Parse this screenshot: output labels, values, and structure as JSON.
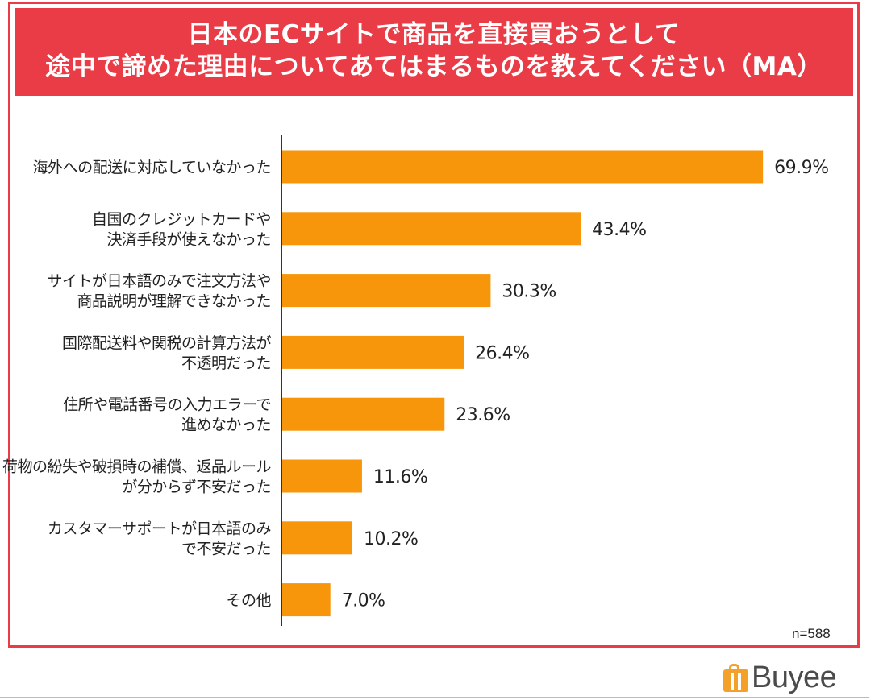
{
  "title": {
    "line1": "日本のECサイトで商品を直接買おうとして",
    "line2": "途中で諦めた理由についてあてはまるものを教えてください（MA）"
  },
  "note": "n=588",
  "brand": "Buyee",
  "colors": {
    "frame": "#ea3c46",
    "bar": "#f7960b",
    "axis": "#333333"
  },
  "chart_data": {
    "type": "bar",
    "orientation": "horizontal",
    "categories": [
      [
        "海外への配送に対応していなかった"
      ],
      [
        "自国のクレジットカードや",
        "決済手段が使えなかった"
      ],
      [
        "サイトが日本語のみで注文方法や",
        "商品説明が理解できなかった"
      ],
      [
        "国際配送料や関税の計算方法が",
        "不透明だった"
      ],
      [
        "住所や電話番号の入力エラーで",
        "進めなかった"
      ],
      [
        "荷物の紛失や破損時の補償、返品ルール",
        "が分からず不安だった"
      ],
      [
        "カスタマーサポートが日本語のみ",
        "で不安だった"
      ],
      [
        "その他"
      ]
    ],
    "values": [
      69.9,
      43.4,
      30.3,
      26.4,
      23.6,
      11.6,
      10.2,
      7.0
    ],
    "value_labels": [
      "69.9%",
      "43.4%",
      "30.3%",
      "26.4%",
      "23.6%",
      "11.6%",
      "10.2%",
      "7.0%"
    ],
    "unit": "%",
    "xlim": [
      0,
      70
    ],
    "grid": false,
    "legend": "none"
  }
}
